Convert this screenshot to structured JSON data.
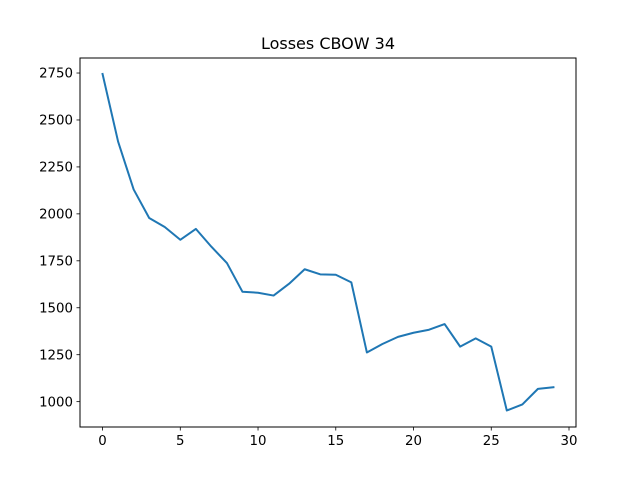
{
  "chart_data": {
    "type": "line",
    "title": "Losses CBOW 34",
    "xlabel": "",
    "ylabel": "",
    "xlim": [
      -1.45,
      30.45
    ],
    "ylim": [
      865,
      2830
    ],
    "grid": false,
    "x_ticks": [
      0,
      5,
      10,
      15,
      20,
      25,
      30
    ],
    "x_tick_labels": [
      "0",
      "5",
      "10",
      "15",
      "20",
      "25",
      "30"
    ],
    "y_ticks": [
      1000,
      1250,
      1500,
      1750,
      2000,
      2250,
      2500,
      2750
    ],
    "y_tick_labels": [
      "1000",
      "1250",
      "1500",
      "1750",
      "2000",
      "2250",
      "2500",
      "2750"
    ],
    "series": [
      {
        "name": "",
        "color": "#1f77b4",
        "x": [
          0,
          1,
          2,
          3,
          4,
          5,
          6,
          7,
          8,
          9,
          10,
          11,
          12,
          13,
          14,
          15,
          16,
          17,
          18,
          19,
          20,
          21,
          22,
          23,
          24,
          25,
          26,
          27,
          28,
          29
        ],
        "y": [
          2745,
          2385,
          2130,
          1978,
          1930,
          1862,
          1920,
          1825,
          1738,
          1585,
          1580,
          1565,
          1628,
          1705,
          1678,
          1676,
          1635,
          1262,
          1307,
          1345,
          1367,
          1383,
          1413,
          1293,
          1337,
          1293,
          953,
          985,
          1068,
          1077
        ]
      }
    ]
  }
}
